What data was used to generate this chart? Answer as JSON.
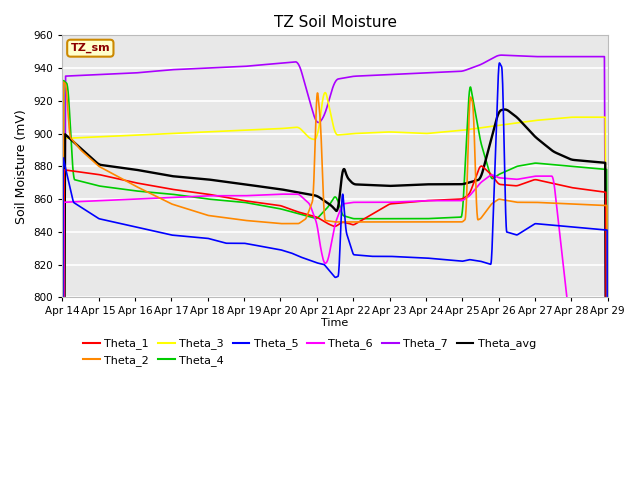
{
  "title": "TZ Soil Moisture",
  "ylabel": "Soil Moisture (mV)",
  "xlabel": "Time",
  "ylim": [
    800,
    960
  ],
  "yticks": [
    800,
    820,
    840,
    860,
    880,
    900,
    920,
    940,
    960
  ],
  "xtick_labels": [
    "Apr 14",
    "Apr 15",
    "Apr 16",
    "Apr 17",
    "Apr 18",
    "Apr 19",
    "Apr 20",
    "Apr 21",
    "Apr 22",
    "Apr 23",
    "Apr 24",
    "Apr 25",
    "Apr 26",
    "Apr 27",
    "Apr 28",
    "Apr 29"
  ],
  "legend_label": "TZ_sm",
  "line_colors": {
    "Theta_1": "#ff0000",
    "Theta_2": "#ff8800",
    "Theta_3": "#ffff00",
    "Theta_4": "#00cc00",
    "Theta_5": "#0000ff",
    "Theta_6": "#ff00ff",
    "Theta_7": "#aa00ff",
    "Theta_avg": "#000000"
  },
  "background_color": "#e8e8e8",
  "plot_bg_color": "#e8e8e8",
  "grid_color": "#ffffff",
  "figsize": [
    6.4,
    4.8
  ],
  "dpi": 100
}
